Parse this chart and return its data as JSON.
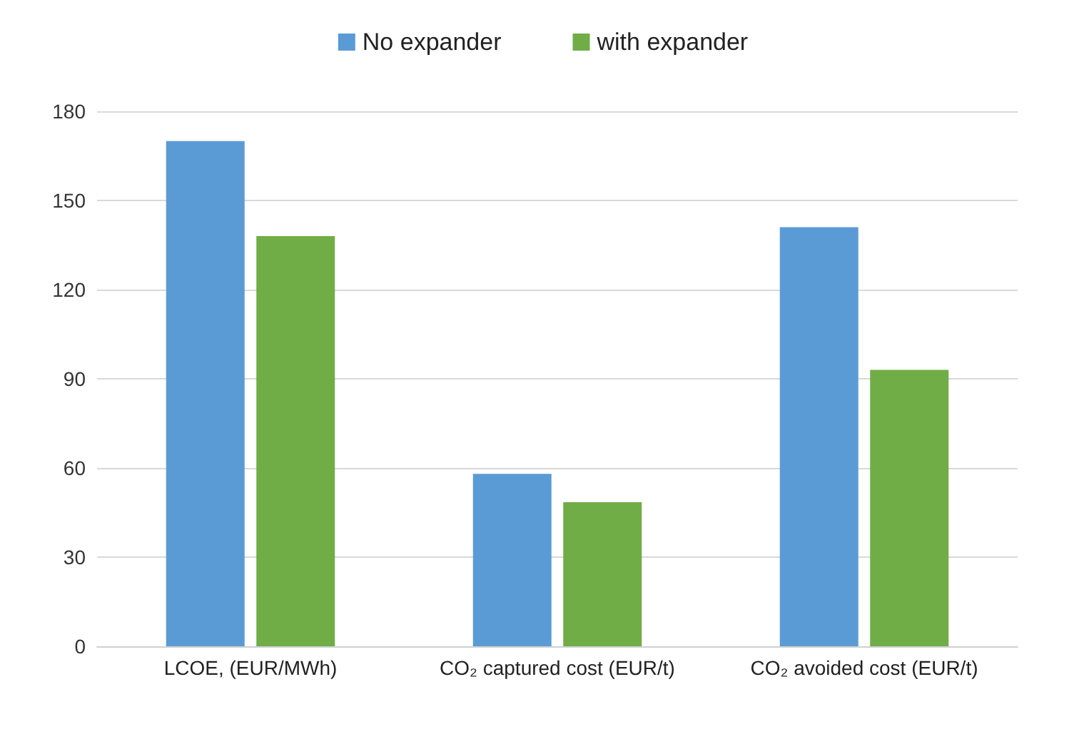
{
  "chart_data": {
    "type": "bar",
    "categories": [
      "LCOE, (EUR/MWh)",
      "CO₂ captured cost (EUR/t)",
      "CO₂ avoided cost (EUR/t)"
    ],
    "series": [
      {
        "name": "No expander",
        "color": "#5b9bd5",
        "values": [
          170,
          58,
          141
        ]
      },
      {
        "name": "with expander",
        "color": "#70ad47",
        "values": [
          138,
          48.5,
          93
        ]
      }
    ],
    "ylim": [
      0,
      180
    ],
    "yticks": [
      0,
      30,
      60,
      90,
      120,
      150,
      180
    ],
    "grid": "y",
    "legend": "top"
  }
}
